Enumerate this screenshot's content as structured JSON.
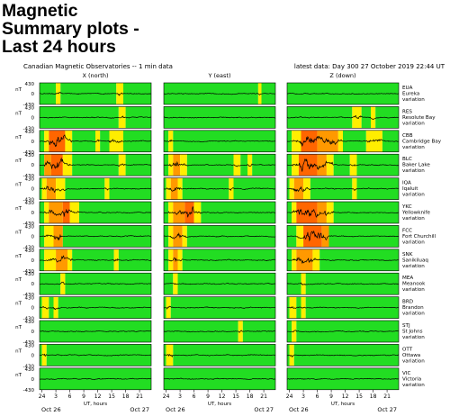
{
  "page": {
    "title_lines": [
      "Magnetic",
      "Summary plots -",
      "Last 24 hours"
    ]
  },
  "figure": {
    "header_left": "Canadian Magnetic Observatories -- 1 min data",
    "header_right": "latest data: Day 300    27 October 2019 22:44 UT",
    "columns": [
      "X (north)",
      "Y (east)",
      "Z (down)"
    ],
    "x_ticks": [
      "24",
      "3",
      "6",
      "9",
      "12",
      "15",
      "18",
      "21"
    ],
    "x_label": "UT, hours",
    "date_left": "Oct 26",
    "date_right": "Oct 27",
    "y_unit": "nT",
    "y_ticks": [
      "430",
      "0",
      "-430"
    ],
    "variation_word": "variation"
  },
  "colors": {
    "quiet": "#22dd22",
    "moderate": "#ffee00",
    "active": "#ff9900",
    "storm": "#ff6600",
    "trace": "#000000"
  },
  "chart_data": {
    "type": "line",
    "title": "Canadian Magnetic Observatories -- 1 min data",
    "xlabel": "UT, hours",
    "x_range_hours": [
      0,
      24
    ],
    "y_range_nT": [
      -430,
      430
    ],
    "activity_levels": [
      "quiet",
      "moderate",
      "active",
      "storm"
    ],
    "stations": [
      {
        "code": "EUA",
        "name": "Eureka",
        "act": [
          [
            [
              0,
              0,
              3
            ],
            [
              0,
              3,
              3.5
            ],
            [
              1,
              3.5,
              4.5
            ],
            [
              0,
              4.5,
              16.5
            ],
            [
              1,
              16.5,
              18
            ],
            [
              0,
              18,
              24
            ]
          ],
          [
            [
              0,
              0,
              20.3
            ],
            [
              1,
              20.3,
              21
            ],
            [
              0,
              21,
              24
            ]
          ],
          [
            [
              0,
              0,
              24
            ]
          ]
        ]
      },
      {
        "code": "RES",
        "name": "Resolute Bay",
        "act": [
          [
            [
              0,
              0,
              17
            ],
            [
              1,
              17,
              18.5
            ],
            [
              0,
              18.5,
              24
            ]
          ],
          [
            [
              0,
              0,
              24
            ]
          ],
          [
            [
              0,
              0,
              14
            ],
            [
              1,
              14,
              16
            ],
            [
              0,
              16,
              18
            ],
            [
              1,
              18,
              19
            ],
            [
              0,
              19,
              24
            ]
          ]
        ]
      },
      {
        "code": "CBB",
        "name": "Cambridge Bay",
        "act": [
          [
            [
              0,
              0,
              1
            ],
            [
              1,
              1,
              2
            ],
            [
              3,
              2,
              5.5
            ],
            [
              1,
              5.5,
              7
            ],
            [
              0,
              7,
              12
            ],
            [
              1,
              12,
              13
            ],
            [
              0,
              13,
              15
            ],
            [
              1,
              15,
              18
            ],
            [
              0,
              18,
              24
            ]
          ],
          [
            [
              0,
              0,
              1
            ],
            [
              1,
              1,
              2
            ],
            [
              0,
              2,
              24
            ]
          ],
          [
            [
              0,
              0,
              1
            ],
            [
              1,
              1,
              3
            ],
            [
              3,
              3,
              6.5
            ],
            [
              2,
              6.5,
              11
            ],
            [
              1,
              11,
              12
            ],
            [
              0,
              12,
              17
            ],
            [
              1,
              17,
              20.5
            ],
            [
              0,
              20.5,
              24
            ]
          ]
        ]
      },
      {
        "code": "BLC",
        "name": "Baker Lake",
        "act": [
          [
            [
              0,
              0,
              1
            ],
            [
              2,
              1,
              2.5
            ],
            [
              3,
              2.5,
              5
            ],
            [
              1,
              5,
              7
            ],
            [
              0,
              7,
              17
            ],
            [
              1,
              17,
              18.5
            ],
            [
              0,
              18.5,
              24
            ]
          ],
          [
            [
              0,
              0,
              1
            ],
            [
              1,
              1,
              2
            ],
            [
              2,
              2,
              3.5
            ],
            [
              1,
              3.5,
              5
            ],
            [
              0,
              5,
              15
            ],
            [
              1,
              15,
              16.5
            ],
            [
              0,
              16.5,
              18
            ],
            [
              1,
              18,
              19
            ],
            [
              0,
              19,
              24
            ]
          ],
          [
            [
              0,
              0,
              1
            ],
            [
              1,
              1,
              2.5
            ],
            [
              3,
              2.5,
              6.5
            ],
            [
              2,
              6.5,
              8.5
            ],
            [
              1,
              8.5,
              10
            ],
            [
              0,
              10,
              13.5
            ],
            [
              1,
              13.5,
              15
            ],
            [
              0,
              15,
              24
            ]
          ]
        ]
      },
      {
        "code": "IQA",
        "name": "Iqaluit",
        "act": [
          [
            [
              0,
              0,
              0.5
            ],
            [
              1,
              0.5,
              1.5
            ],
            [
              2,
              1.5,
              3.5
            ],
            [
              1,
              3.5,
              5.5
            ],
            [
              0,
              5.5,
              14
            ],
            [
              1,
              14,
              15
            ],
            [
              0,
              15,
              24
            ]
          ],
          [
            [
              0,
              0,
              0.5
            ],
            [
              1,
              0.5,
              1.5
            ],
            [
              2,
              1.5,
              3
            ],
            [
              1,
              3,
              4
            ],
            [
              0,
              4,
              14
            ],
            [
              1,
              14,
              15
            ],
            [
              0,
              15,
              24
            ]
          ],
          [
            [
              0,
              0,
              0.5
            ],
            [
              1,
              0.5,
              1.5
            ],
            [
              2,
              1.5,
              3.5
            ],
            [
              1,
              3.5,
              5
            ],
            [
              0,
              5,
              14
            ],
            [
              1,
              14,
              15
            ],
            [
              0,
              15,
              24
            ]
          ]
        ]
      },
      {
        "code": "YKC",
        "name": "Yellowknife",
        "act": [
          [
            [
              0,
              0,
              1
            ],
            [
              1,
              1,
              2
            ],
            [
              2,
              2,
              5
            ],
            [
              3,
              5,
              6.5
            ],
            [
              1,
              6.5,
              8.5
            ],
            [
              0,
              8.5,
              24
            ]
          ],
          [
            [
              0,
              0,
              1
            ],
            [
              1,
              1,
              2
            ],
            [
              2,
              2,
              4.5
            ],
            [
              3,
              4.5,
              6.5
            ],
            [
              1,
              6.5,
              8
            ],
            [
              0,
              8,
              24
            ]
          ],
          [
            [
              0,
              0,
              1
            ],
            [
              1,
              1,
              2
            ],
            [
              3,
              2,
              6.5
            ],
            [
              2,
              6.5,
              8.5
            ],
            [
              1,
              8.5,
              10
            ],
            [
              0,
              10,
              24
            ]
          ]
        ]
      },
      {
        "code": "FCC",
        "name": "Fort Churchill",
        "act": [
          [
            [
              0,
              0,
              1
            ],
            [
              1,
              1,
              3
            ],
            [
              2,
              3,
              5
            ],
            [
              0,
              5,
              24
            ]
          ],
          [
            [
              0,
              0,
              1
            ],
            [
              1,
              1,
              2
            ],
            [
              2,
              2,
              4
            ],
            [
              1,
              4,
              5
            ],
            [
              0,
              5,
              24
            ]
          ],
          [
            [
              0,
              0,
              2
            ],
            [
              1,
              2,
              3.5
            ],
            [
              3,
              3.5,
              7.5
            ],
            [
              2,
              7.5,
              9
            ],
            [
              0,
              9,
              24
            ]
          ]
        ]
      },
      {
        "code": "SNK",
        "name": "Sanikiluaq",
        "act": [
          [
            [
              0,
              0,
              1
            ],
            [
              1,
              1,
              3.5
            ],
            [
              2,
              3.5,
              6
            ],
            [
              1,
              6,
              7
            ],
            [
              0,
              7,
              16
            ],
            [
              1,
              16,
              17
            ],
            [
              0,
              17,
              24
            ]
          ],
          [
            [
              0,
              0,
              1
            ],
            [
              1,
              1,
              2
            ],
            [
              2,
              2,
              3
            ],
            [
              1,
              3,
              4
            ],
            [
              0,
              4,
              24
            ]
          ],
          [
            [
              0,
              0,
              1
            ],
            [
              1,
              1,
              2
            ],
            [
              2,
              2,
              5.5
            ],
            [
              1,
              5.5,
              7
            ],
            [
              0,
              7,
              24
            ]
          ]
        ]
      },
      {
        "code": "MEA",
        "name": "Meanook",
        "act": [
          [
            [
              0,
              0,
              4.5
            ],
            [
              1,
              4.5,
              5.5
            ],
            [
              0,
              5.5,
              24
            ]
          ],
          [
            [
              0,
              0,
              2
            ],
            [
              1,
              2,
              3
            ],
            [
              0,
              3,
              24
            ]
          ],
          [
            [
              0,
              0,
              3
            ],
            [
              1,
              3,
              4
            ],
            [
              0,
              4,
              24
            ]
          ]
        ]
      },
      {
        "code": "BRD",
        "name": "Brandon",
        "act": [
          [
            [
              0,
              0,
              0.5
            ],
            [
              1,
              0.5,
              2
            ],
            [
              0,
              2,
              3
            ],
            [
              1,
              3,
              4
            ],
            [
              0,
              4,
              24
            ]
          ],
          [
            [
              0,
              0,
              0.5
            ],
            [
              1,
              0.5,
              1.5
            ],
            [
              0,
              1.5,
              24
            ]
          ],
          [
            [
              0,
              0,
              0.5
            ],
            [
              1,
              0.5,
              2
            ],
            [
              0,
              2,
              3
            ],
            [
              1,
              3,
              4
            ],
            [
              0,
              4,
              24
            ]
          ]
        ]
      },
      {
        "code": "STJ",
        "name": "St Johns",
        "act": [
          [
            [
              0,
              0,
              24
            ]
          ],
          [
            [
              0,
              0,
              16
            ],
            [
              1,
              16,
              17
            ],
            [
              0,
              17,
              24
            ]
          ],
          [
            [
              0,
              0,
              1
            ],
            [
              1,
              1,
              2
            ],
            [
              0,
              2,
              24
            ]
          ]
        ]
      },
      {
        "code": "OTT",
        "name": "Ottawa",
        "act": [
          [
            [
              0,
              0,
              0.5
            ],
            [
              1,
              0.5,
              1.5
            ],
            [
              0,
              1.5,
              24
            ]
          ],
          [
            [
              0,
              0,
              0.5
            ],
            [
              1,
              0.5,
              2
            ],
            [
              0,
              2,
              24
            ]
          ],
          [
            [
              0,
              0,
              0.5
            ],
            [
              1,
              0.5,
              1.5
            ],
            [
              0,
              1.5,
              24
            ]
          ]
        ]
      },
      {
        "code": "VIC",
        "name": "Victoria",
        "act": [
          [
            [
              0,
              0,
              24
            ]
          ],
          [
            [
              0,
              0,
              24
            ]
          ],
          [
            [
              0,
              0,
              24
            ]
          ]
        ]
      }
    ]
  }
}
